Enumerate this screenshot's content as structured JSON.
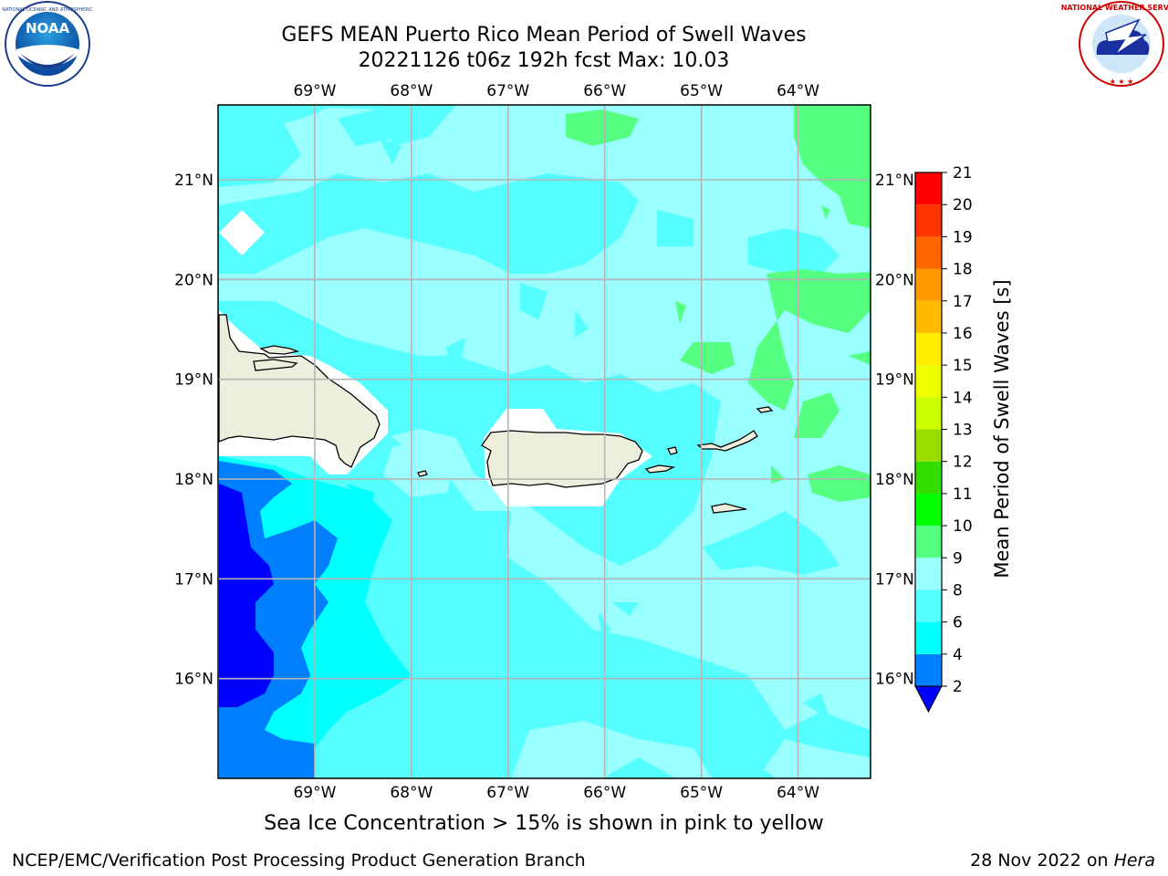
{
  "header": {
    "title": "GEFS MEAN Puerto Rico Mean Period of Swell Waves",
    "subtitle": "20221126 t06z 192h fcst   Max: 10.03"
  },
  "map": {
    "lon_range": [
      -70.0,
      -63.25
    ],
    "lat_range": [
      15.0,
      21.75
    ],
    "lon_ticks": [
      "69°W",
      "68°W",
      "67°W",
      "66°W",
      "65°W",
      "64°W"
    ],
    "lat_ticks": [
      "21°N",
      "20°N",
      "19°N",
      "18°N",
      "17°N",
      "16°N"
    ],
    "land_color": "#eeeedc",
    "ocean_base_color": "#55ffff",
    "grid": true
  },
  "colorbar": {
    "label": "Mean Period of Swell Waves [s]",
    "levels": [
      "2",
      "4",
      "6",
      "8",
      "9",
      "10",
      "11",
      "12",
      "13",
      "14",
      "15",
      "16",
      "17",
      "18",
      "19",
      "20",
      "21"
    ],
    "colors": [
      "#0000ff",
      "#0080ff",
      "#00ffff",
      "#55ffff",
      "#99ffff",
      "#55ff80",
      "#00ff00",
      "#33dd00",
      "#99dd00",
      "#ccff00",
      "#eeff00",
      "#ffee00",
      "#ffbb00",
      "#ff9900",
      "#ff6600",
      "#ff3300",
      "#ff0000"
    ],
    "extend": "min"
  },
  "footer": {
    "ice_note": "Sea Ice Concentration > 15% is shown in pink to yellow",
    "branch": "NCEP/EMC/Verification Post Processing Product Generation Branch",
    "date": "28 Nov 2022 on",
    "machine": "Hera"
  },
  "logos": {
    "left": "noara-logo",
    "right": "nws-logo"
  }
}
